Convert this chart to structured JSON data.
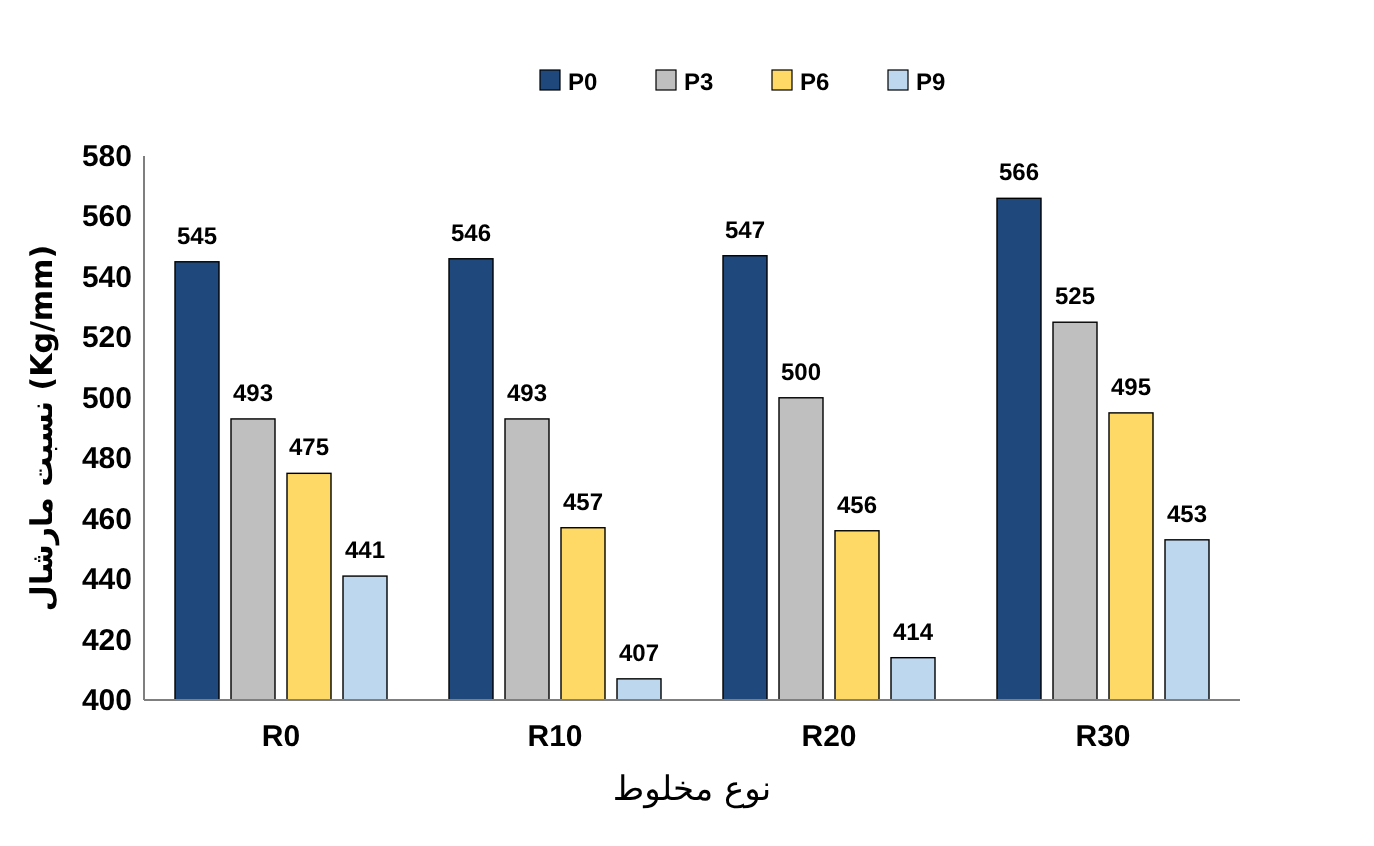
{
  "chart_data": {
    "type": "bar",
    "xlabel": "نوع مخلوط",
    "ylabel": "نسبت مارشال (Kg/mm)",
    "categories": [
      "R0",
      "R10",
      "R20",
      "R30"
    ],
    "series": [
      {
        "name": "P0",
        "color": "#1f497d",
        "values": [
          545,
          546,
          547,
          566
        ]
      },
      {
        "name": "P3",
        "color": "#bfbfbf",
        "values": [
          493,
          493,
          500,
          525
        ]
      },
      {
        "name": "P6",
        "color": "#ffd966",
        "values": [
          475,
          457,
          456,
          495
        ]
      },
      {
        "name": "P9",
        "color": "#bdd7ee",
        "values": [
          441,
          407,
          414,
          453
        ]
      }
    ],
    "ylim": [
      400,
      580
    ],
    "yticks": [
      400,
      420,
      440,
      460,
      480,
      500,
      520,
      540,
      560,
      580
    ],
    "data_labels": true,
    "legend": "top",
    "grid": false
  }
}
